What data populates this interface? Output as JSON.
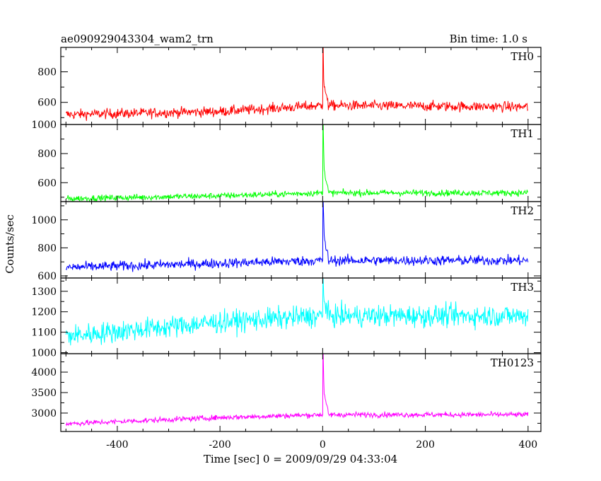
{
  "chart_data": {
    "type": "line",
    "title": "ae090929043304_wam2_trn",
    "bin_time_label": "Bin time: 1.0 s",
    "xlabel": "Time [sec] 0 = 2009/09/29 04:33:04",
    "ylabel": "Counts/sec",
    "xlim": [
      -510,
      425
    ],
    "x_ticks": [
      -400,
      -200,
      0,
      200,
      400
    ],
    "x_range": [
      -500,
      400
    ],
    "bin_time": 1.0,
    "panels": [
      {
        "name": "TH0",
        "color": "#ff0000",
        "ylim": [
          455,
          960
        ],
        "y_ticks": [
          600,
          800
        ],
        "baseline": [
          [
            -500,
            520
          ],
          [
            -200,
            540
          ],
          [
            0,
            580
          ],
          [
            400,
            570
          ]
        ],
        "noise": 28,
        "peak": {
          "x": 1,
          "y": 960,
          "decay_to": [
            [
              2,
              760
            ],
            [
              3,
              700
            ],
            [
              6,
              650
            ],
            [
              10,
              620
            ]
          ]
        }
      },
      {
        "name": "TH1",
        "color": "#00ff00",
        "ylim": [
          470,
          1000
        ],
        "y_ticks": [
          600,
          800,
          1000
        ],
        "baseline": [
          [
            -500,
            490
          ],
          [
            -200,
            510
          ],
          [
            0,
            530
          ],
          [
            400,
            530
          ]
        ],
        "noise": 18,
        "peak": {
          "x": 1,
          "y": 1000,
          "decay_to": [
            [
              2,
              820
            ],
            [
              3,
              700
            ],
            [
              6,
              620
            ],
            [
              10,
              570
            ]
          ]
        }
      },
      {
        "name": "TH2",
        "color": "#0000ff",
        "ylim": [
          585,
          1130
        ],
        "y_ticks": [
          600,
          800,
          1000
        ],
        "baseline": [
          [
            -500,
            660
          ],
          [
            -200,
            690
          ],
          [
            0,
            710
          ],
          [
            400,
            710
          ]
        ],
        "noise": 30,
        "peak": {
          "x": 1,
          "y": 1130,
          "decay_to": [
            [
              2,
              1020
            ],
            [
              3,
              900
            ],
            [
              6,
              800
            ],
            [
              10,
              760
            ]
          ]
        }
      },
      {
        "name": "TH3",
        "color": "#00ffff",
        "ylim": [
          995,
          1365
        ],
        "y_ticks": [
          1000,
          1100,
          1200,
          1300
        ],
        "baseline": [
          [
            -500,
            1080
          ],
          [
            -200,
            1150
          ],
          [
            0,
            1180
          ],
          [
            400,
            1180
          ]
        ],
        "noise": 45,
        "peak": {
          "x": 1,
          "y": 1360,
          "decay_to": [
            [
              2,
              1280
            ],
            [
              4,
              1240
            ],
            [
              8,
              1220
            ]
          ]
        }
      },
      {
        "name": "TH0123",
        "color": "#ff00ff",
        "ylim": [
          2550,
          4450
        ],
        "y_ticks": [
          3000,
          3500,
          4000
        ],
        "baseline": [
          [
            -500,
            2740
          ],
          [
            -200,
            2890
          ],
          [
            0,
            2960
          ],
          [
            400,
            2960
          ]
        ],
        "noise": 55,
        "peak": {
          "x": 1,
          "y": 4450,
          "decay_to": [
            [
              2,
              3850
            ],
            [
              3,
              3500
            ],
            [
              6,
              3250
            ],
            [
              10,
              3100
            ]
          ]
        }
      }
    ]
  }
}
